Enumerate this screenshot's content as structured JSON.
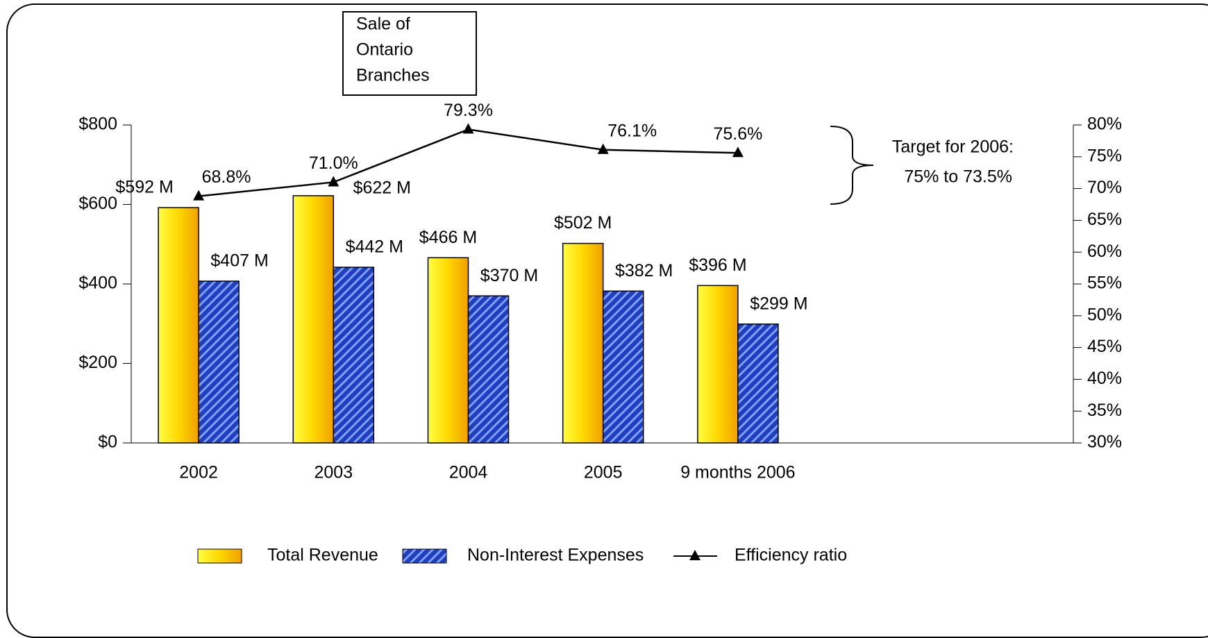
{
  "chart_data": {
    "type": "bar_line",
    "categories": [
      "2002",
      "2003",
      "2004",
      "2005",
      "9 months 2006"
    ],
    "series": [
      {
        "name": "Total Revenue",
        "type": "bar",
        "color": "#ffd700",
        "values": [
          592,
          622,
          466,
          502,
          396
        ],
        "value_labels": [
          "$592 M",
          "$622 M",
          "$466 M",
          "$502 M",
          "$396 M"
        ]
      },
      {
        "name": "Non-Interest Expenses",
        "type": "bar",
        "color": "#1f3fbf",
        "values": [
          407,
          442,
          370,
          382,
          299
        ],
        "value_labels": [
          "$407 M",
          "$442 M",
          "$370 M",
          "$382 M",
          "$299 M"
        ]
      },
      {
        "name": "Efficiency ratio",
        "type": "line",
        "axis": "y2",
        "color": "#000000",
        "values": [
          68.8,
          71.0,
          79.3,
          76.1,
          75.6
        ],
        "value_labels": [
          "68.8%",
          "71.0%",
          "79.3%",
          "76.1%",
          "75.6%"
        ]
      }
    ],
    "ylim": [
      0,
      800
    ],
    "yticks": [
      {
        "value": 0,
        "label": "$0"
      },
      {
        "value": 200,
        "label": "$200"
      },
      {
        "value": 400,
        "label": "$400"
      },
      {
        "value": 600,
        "label": "$600"
      },
      {
        "value": 800,
        "label": "$800"
      }
    ],
    "y2lim": [
      30,
      80
    ],
    "y2ticks": [
      {
        "value": 30,
        "label": "30%"
      },
      {
        "value": 35,
        "label": "35%"
      },
      {
        "value": 40,
        "label": "40%"
      },
      {
        "value": 45,
        "label": "45%"
      },
      {
        "value": 50,
        "label": "50%"
      },
      {
        "value": 55,
        "label": "55%"
      },
      {
        "value": 60,
        "label": "60%"
      },
      {
        "value": 65,
        "label": "65%"
      },
      {
        "value": 70,
        "label": "70%"
      },
      {
        "value": 75,
        "label": "75%"
      },
      {
        "value": 80,
        "label": "80%"
      }
    ],
    "annotations": [
      "Sale of",
      "Ontario",
      "Branches",
      "Target for 2006:",
      "75% to 73.5%"
    ]
  }
}
